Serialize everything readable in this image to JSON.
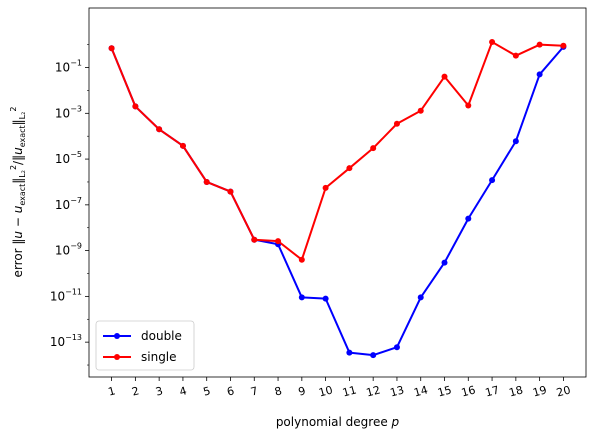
{
  "chart_data": {
    "type": "line",
    "title": "",
    "xlabel": "polynomial degree p",
    "ylabel": "error ‖u − u_exact‖²_L₂ / ‖u_exact‖²_L₂",
    "x": [
      1,
      2,
      3,
      4,
      5,
      6,
      7,
      8,
      9,
      10,
      11,
      12,
      13,
      14,
      15,
      16,
      17,
      18,
      19,
      20
    ],
    "x_tick_labels": [
      "1",
      "2",
      "3",
      "4",
      "5",
      "6",
      "7",
      "8",
      "9",
      "10",
      "11",
      "12",
      "13",
      "14",
      "15",
      "16",
      "17",
      "18",
      "19",
      "20"
    ],
    "y_scale": "log",
    "ylim": [
      3e-15,
      40
    ],
    "y_ticks": [
      {
        "value": 1e-13,
        "mant": "10",
        "exp": "−13"
      },
      {
        "value": 1e-11,
        "mant": "10",
        "exp": "−11"
      },
      {
        "value": 1e-09,
        "mant": "10",
        "exp": "−9"
      },
      {
        "value": 1e-07,
        "mant": "10",
        "exp": "−7"
      },
      {
        "value": 1e-05,
        "mant": "10",
        "exp": "−5"
      },
      {
        "value": 0.001,
        "mant": "10",
        "exp": "−3"
      },
      {
        "value": 0.1,
        "mant": "10",
        "exp": "−1"
      }
    ],
    "grid": false,
    "legend": "lower-left",
    "series": [
      {
        "name": "double",
        "color": "#0000ff",
        "values": [
          0.7,
          0.002,
          0.0002,
          3.8e-05,
          1e-06,
          3.8e-07,
          3e-09,
          1.9e-09,
          9e-12,
          8e-12,
          3.5e-14,
          2.7e-14,
          6e-14,
          9e-12,
          3e-10,
          2.5e-08,
          1.2e-06,
          6e-05,
          0.05,
          0.8
        ]
      },
      {
        "name": "single",
        "color": "#ff0000",
        "values": [
          0.7,
          0.002,
          0.0002,
          3.8e-05,
          1e-06,
          3.8e-07,
          3e-09,
          2.6e-09,
          4e-10,
          5.5e-07,
          4e-06,
          3e-05,
          0.00035,
          0.0013,
          0.04,
          0.0022,
          1.3,
          0.33,
          1.0,
          0.9
        ]
      }
    ]
  }
}
